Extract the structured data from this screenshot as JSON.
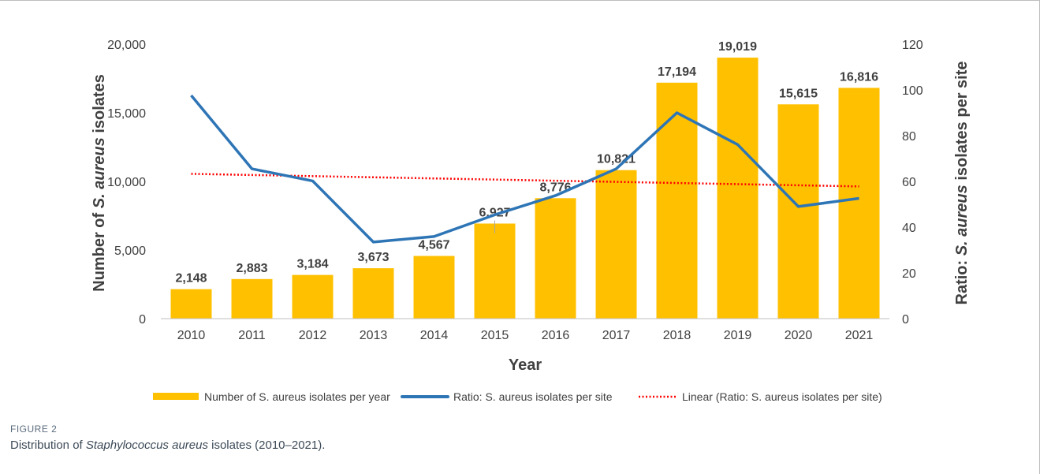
{
  "chart_data": {
    "type": "bar",
    "categories": [
      "2010",
      "2011",
      "2012",
      "2013",
      "2014",
      "2015",
      "2016",
      "2017",
      "2018",
      "2019",
      "2020",
      "2021"
    ],
    "series": [
      {
        "name": "Number of S. aureus isolates per year",
        "type": "bar",
        "axis": "left",
        "values": [
          2148,
          2883,
          3184,
          3673,
          4567,
          6927,
          8776,
          10821,
          17194,
          19019,
          15615,
          16816
        ],
        "labels": [
          "2,148",
          "2,883",
          "3,184",
          "3,673",
          "4,567",
          "6,927",
          "8,776",
          "10,821",
          "17,194",
          "19,019",
          "15,615",
          "16,816"
        ],
        "color": "#FFC000"
      },
      {
        "name": "Ratio: S. aureus isolates per site",
        "type": "line",
        "axis": "right",
        "values": [
          97.6,
          65.5,
          60.2,
          33.5,
          35.9,
          45.4,
          53.8,
          65.5,
          90.0,
          76.1,
          49.0,
          52.6
        ],
        "color": "#2E75B6"
      },
      {
        "name": "Linear (Ratio: S. aureus isolates per site)",
        "type": "trendline",
        "axis": "right",
        "values": [
          63.3,
          62.8,
          62.3,
          61.8,
          61.3,
          60.8,
          60.3,
          59.8,
          59.3,
          58.8,
          58.3,
          57.8
        ],
        "color": "#FF0000"
      }
    ],
    "xlabel": "Year",
    "ylabel_left_pre": "Number of ",
    "ylabel_left_italic": "S. aureus",
    "ylabel_left_post": " isolates",
    "ylabel_right_pre": "Ratio: ",
    "ylabel_right_italic": "S. aureus",
    "ylabel_right_post": " isolates per site",
    "ylim_left": [
      0,
      20000
    ],
    "yticks_left": [
      "0",
      "5,000",
      "10,000",
      "15,000",
      "20,000"
    ],
    "ytick_values_left": [
      0,
      5000,
      10000,
      15000,
      20000
    ],
    "ylim_right": [
      0,
      120
    ],
    "yticks_right": [
      "0",
      "20",
      "40",
      "60",
      "80",
      "100",
      "120"
    ],
    "ytick_values_right": [
      0,
      20,
      40,
      60,
      80,
      100,
      120
    ],
    "grid": false,
    "legend": "bottom"
  },
  "figure": {
    "label": "FIGURE 2",
    "caption_pre": "Distribution of ",
    "caption_italic": "Staphylococcus aureus",
    "caption_post": " isolates (2010–2021)."
  }
}
